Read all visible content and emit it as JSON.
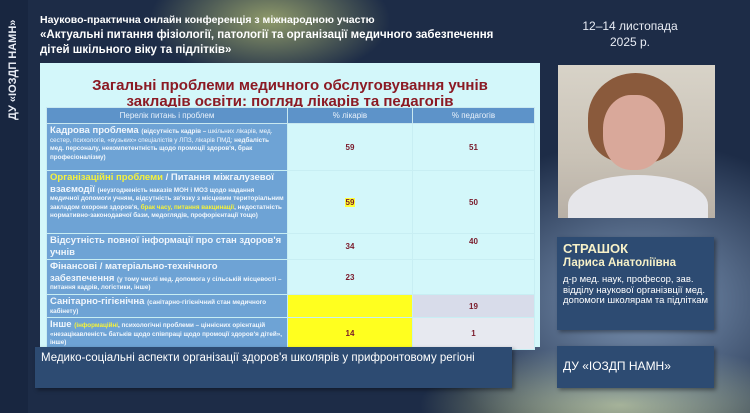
{
  "sidebar": {
    "org_vertical": "ДУ «ІОЗДП НАМН»"
  },
  "header": {
    "line1": "Науково-практична онлайн конференція з міжнародною участю",
    "line2": "«Актуальні питання фізіології, патології та організації медичного забезпечення",
    "line3": "дітей шкільного віку та підлітків»",
    "date1": "12–14 листопада",
    "date2": "2025 р."
  },
  "slide": {
    "title_line1": "Загальні проблеми медичного обслуговування учнів",
    "title_line2": "закладів освіти: погляд лікарів та педагогів",
    "columns": [
      "Перелік питань і проблем",
      "% лікарів",
      "% педагогів"
    ],
    "rows": [
      {
        "segments": [
          {
            "t": "Кадрова проблема ",
            "s": "big"
          },
          {
            "t": "(відсутність кадрів – ",
            "s": "sb"
          },
          {
            "t": "шкільних лікарів, мед. сестер, психологів, «вузьких» спеціалістів у ЛПЗ, лікарів ПМД; ",
            "s": ""
          },
          {
            "t": "недбалість мед. персоналу, некомпетентність щодо промоції здоров'я, брак професіоналізму)",
            "s": "sb"
          }
        ],
        "doctors": "59",
        "teachers": "51"
      },
      {
        "segments": [
          {
            "t": "Організаційні проблеми",
            "s": "big y"
          },
          {
            "t": " / Питання міжгалузевої взаємодії ",
            "s": "big"
          },
          {
            "t": "(неузгодженість наказів МОН і МОЗ щодо надання медичної допомоги учням, відсутність зв'язку з місцевим територіальним закладом охорони здоров'я, ",
            "s": "sb"
          },
          {
            "t": "брак часу, питання вакцинації",
            "s": "sb y"
          },
          {
            "t": ", недостатність нормативно-законодавчої бази, медоглядів, профорієнтації тощо)",
            "s": "sb"
          }
        ],
        "doctors": "59",
        "teachers": "50"
      },
      {
        "segments": [
          {
            "t": "Відсутність повної інформації про стан здоров'я учнів",
            "s": "big"
          }
        ],
        "doctors": "34",
        "teachers": "40"
      },
      {
        "segments": [
          {
            "t": "Фінансові / матеріально-технічного забезпечення ",
            "s": "big"
          },
          {
            "t": "(у тому числі мед. допомога у сільській місцевості – питання кадрів, логістики, інше)",
            "s": "sb"
          }
        ],
        "doctors": "23",
        "teachers": ""
      },
      {
        "segments": [
          {
            "t": "Санітарно-гігієнічна ",
            "s": "big"
          },
          {
            "t": "(санітарно-гігієнічний стан медичного кабінету)",
            "s": "sb"
          }
        ],
        "doctors": "",
        "teachers": "19"
      },
      {
        "segments": [
          {
            "t": "Інше ",
            "s": "big"
          },
          {
            "t": "(інформаційні",
            "s": "sb y"
          },
          {
            "t": ", психологічні проблеми – ціннісних орієнтацій «незацікавленість батьків щодо співпраці щодо промоції здоров'я дітей», інше)",
            "s": "sb"
          }
        ],
        "doctors": "14",
        "teachers": "1"
      }
    ]
  },
  "speaker": {
    "surname": "СТРАШОК",
    "name": "Лариса Анатоліївна",
    "position": "д-р мед. наук, професор, зав. відділу наукової організвції мед. допомоги школярам та підліткам"
  },
  "organization": "ДУ «ІОЗДП НАМН»",
  "caption": "Медико-соціальні аспекти організації здоров'я школярів у прифронтовому регіоні",
  "colors": {
    "slide_bg": "#d3f7fa",
    "title": "#8b1a24",
    "header_cell": "#5d93c9",
    "highlight": "#ffff1f",
    "card": "#2d4b72"
  }
}
